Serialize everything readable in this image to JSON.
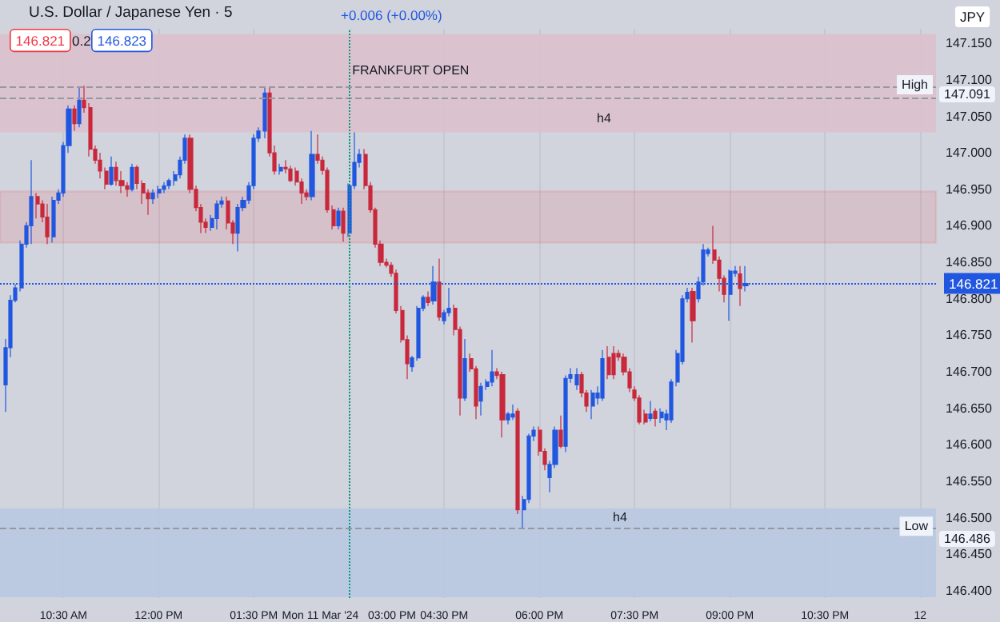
{
  "chart_data": {
    "type": "candlestick",
    "title": "U.S. Dollar / Japanese Yen · 5",
    "annotations": [
      "146.821",
      "0.2",
      "146.823",
      "+0.006 (+0.00%)",
      "JPY",
      "147.091",
      "146.486"
    ],
    "colors": [
      "#2157e0",
      "#2157e0",
      "#2157e0",
      "#2157e0",
      "#2157e0",
      "#2157e0",
      "#c8283c",
      "#c8283c",
      "#c8283c",
      "#2157e0",
      "#2157e0",
      "#2157e0",
      "#2157e0",
      "#c8283c",
      "#2157e0",
      "#c8283c",
      "#c8283c",
      "#c8283c",
      "#c8283c",
      "#c8283c",
      "#2157e0",
      "#c8283c",
      "#c8283c",
      "#c8283c",
      "#2157e0",
      "#c8283c",
      "#c8283c",
      "#c8283c",
      "#2157e0",
      "#2157e0",
      "#2157e0",
      "#2157e0",
      "#2157e0",
      "#2157e0",
      "#2157e0",
      "#c8283c",
      "#c8283c",
      "#c8283c",
      "#c8283c",
      "#2157e0",
      "#2157e0",
      "#2157e0",
      "#c8283c",
      "#c8283c",
      "#2157e0",
      "#2157e0",
      "#2157e0",
      "#2157e0",
      "#2157e0",
      "#2157e0",
      "#c8283c",
      "#c8283c",
      "#2157e0",
      "#c8283c",
      "#c8283c",
      "#c8283c",
      "#c8283c",
      "#c8283c",
      "#2157e0",
      "#c8283c",
      "#c8283c",
      "#c8283c",
      "#c8283c",
      "#2157e0",
      "#c8283c",
      "#2157e0",
      "#2157e0",
      "#2157e0",
      "#c8283c",
      "#c8283c",
      "#c8283c",
      "#c8283c",
      "#c8283c",
      "#c8283c",
      "#c8283c",
      "#c8283c",
      "#c8283c",
      "#2157e0",
      "#2157e0",
      "#2157e0",
      "#c8283c",
      "#2157e0",
      "#c8283c",
      "#2157e0",
      "#2157e0",
      "#c8283c",
      "#c8283c",
      "#2157e0",
      "#c8283c",
      "#c8283c",
      "#2157e0",
      "#2157e0",
      "#2157e0",
      "#c8283c",
      "#c8283c",
      "#2157e0",
      "#2157e0",
      "#c8283c",
      "#2157e0",
      "#2157e0",
      "#2157e0",
      "#c8283c",
      "#c8283c",
      "#2157e0",
      "#2157e0",
      "#c8283c",
      "#2157e0",
      "#2157e0",
      "#2157e0",
      "#c8283c",
      "#c8283c",
      "#2157e0",
      "#2157e0",
      "#2157e0",
      "#c8283c",
      "#c8283c",
      "#c8283c",
      "#c8283c",
      "#c8283c",
      "#c8283c",
      "#c8283c",
      "#c8283c",
      "#2157e0",
      "#c8283c",
      "#2157e0",
      "#2157e0",
      "#2157e0",
      "#2157e0",
      "#2157e0",
      "#2157e0",
      "#c8283c",
      "#2157e0",
      "#2157e0",
      "#2157e0",
      "#c8283c",
      "#c8283c",
      "#c8283c",
      "#2157e0",
      "#2157e0",
      "#c8283c",
      "#2157e0"
    ],
    "x": [
      "2024-03-11T09:35",
      "2024-03-11T09:40",
      "2024-03-11T09:45",
      "2024-03-11T09:50",
      "2024-03-11T09:55",
      "2024-03-11T10:00",
      "2024-03-11T10:05",
      "2024-03-11T10:10",
      "2024-03-11T10:15",
      "2024-03-11T10:20",
      "2024-03-11T10:25",
      "2024-03-11T10:30",
      "2024-03-11T10:35",
      "2024-03-11T10:40",
      "2024-03-11T10:45",
      "2024-03-11T10:50",
      "2024-03-11T10:55",
      "2024-03-11T11:00",
      "2024-03-11T11:05",
      "2024-03-11T11:10",
      "2024-03-11T11:15",
      "2024-03-11T11:20",
      "2024-03-11T11:25",
      "2024-03-11T11:30",
      "2024-03-11T11:35",
      "2024-03-11T11:40",
      "2024-03-11T11:45",
      "2024-03-11T11:50",
      "2024-03-11T11:55",
      "2024-03-11T12:00",
      "2024-03-11T12:05",
      "2024-03-11T12:10",
      "2024-03-11T12:15",
      "2024-03-11T12:20",
      "2024-03-11T12:25",
      "2024-03-11T12:30",
      "2024-03-11T12:35",
      "2024-03-11T12:40",
      "2024-03-11T12:45",
      "2024-03-11T12:50",
      "2024-03-11T12:55",
      "2024-03-11T13:00",
      "2024-03-11T13:05",
      "2024-03-11T13:10",
      "2024-03-11T13:15",
      "2024-03-11T13:20",
      "2024-03-11T13:25",
      "2024-03-11T13:30",
      "2024-03-11T13:35",
      "2024-03-11T13:40",
      "2024-03-11T13:45",
      "2024-03-11T13:50",
      "2024-03-11T13:55",
      "2024-03-11T14:00",
      "2024-03-11T14:05",
      "2024-03-11T14:10",
      "2024-03-11T14:15",
      "2024-03-11T14:20",
      "2024-03-11T14:25",
      "2024-03-11T14:30",
      "2024-03-11T14:35",
      "2024-03-11T14:40",
      "2024-03-11T14:45",
      "2024-03-11T14:50",
      "2024-03-11T14:55",
      "2024-03-11T15:00",
      "2024-03-11T15:05",
      "2024-03-11T15:10",
      "2024-03-11T15:15",
      "2024-03-11T15:20",
      "2024-03-11T15:25",
      "2024-03-11T15:30",
      "2024-03-11T15:35",
      "2024-03-11T15:40",
      "2024-03-11T15:45",
      "2024-03-11T15:50",
      "2024-03-11T15:55",
      "2024-03-11T16:00",
      "2024-03-11T16:05",
      "2024-03-11T16:10",
      "2024-03-11T16:15",
      "2024-03-11T16:20",
      "2024-03-11T16:25",
      "2024-03-11T16:30",
      "2024-03-11T16:35",
      "2024-03-11T16:40",
      "2024-03-11T16:45",
      "2024-03-11T16:50",
      "2024-03-11T16:55",
      "2024-03-11T17:00",
      "2024-03-11T17:05",
      "2024-03-11T17:10",
      "2024-03-11T17:15",
      "2024-03-11T17:20",
      "2024-03-11T17:25",
      "2024-03-11T17:30",
      "2024-03-11T17:35",
      "2024-03-11T17:40",
      "2024-03-11T17:45",
      "2024-03-11T17:50",
      "2024-03-11T17:55",
      "2024-03-11T18:00",
      "2024-03-11T18:05",
      "2024-03-11T18:10",
      "2024-03-11T18:15",
      "2024-03-11T18:20",
      "2024-03-11T18:25",
      "2024-03-11T18:30",
      "2024-03-11T18:35",
      "2024-03-11T18:40",
      "2024-03-11T18:45",
      "2024-03-11T18:50",
      "2024-03-11T18:55",
      "2024-03-11T19:00",
      "2024-03-11T19:05",
      "2024-03-11T19:10",
      "2024-03-11T19:15",
      "2024-03-11T19:20",
      "2024-03-11T19:25",
      "2024-03-11T19:30",
      "2024-03-11T19:35",
      "2024-03-11T19:40",
      "2024-03-11T19:45",
      "2024-03-11T19:50",
      "2024-03-11T19:55",
      "2024-03-11T20:00",
      "2024-03-11T20:05",
      "2024-03-11T20:10",
      "2024-03-11T20:15",
      "2024-03-11T20:20",
      "2024-03-11T20:25",
      "2024-03-11T20:30",
      "2024-03-11T20:35",
      "2024-03-11T20:40",
      "2024-03-11T20:45",
      "2024-03-11T20:50",
      "2024-03-11T20:55",
      "2024-03-11T21:00",
      "2024-03-11T21:05",
      "2024-03-11T21:10",
      "2024-03-11T21:15"
    ],
    "ohlc": [
      [
        146.682,
        146.745,
        146.645,
        146.733
      ],
      [
        146.733,
        146.805,
        146.72,
        146.798
      ],
      [
        146.798,
        146.82,
        146.795,
        146.815
      ],
      [
        146.815,
        146.88,
        146.81,
        146.875
      ],
      [
        146.875,
        146.905,
        146.87,
        146.9
      ],
      [
        146.9,
        146.99,
        146.875,
        146.94
      ],
      [
        146.94,
        146.945,
        146.91,
        146.93
      ],
      [
        146.93,
        146.935,
        146.905,
        146.912
      ],
      [
        146.912,
        146.93,
        146.875,
        146.885
      ],
      [
        146.885,
        146.94,
        146.877,
        146.935
      ],
      [
        146.935,
        146.95,
        146.93,
        146.945
      ],
      [
        146.945,
        147.015,
        146.94,
        147.01
      ],
      [
        147.01,
        147.065,
        147.0,
        147.06
      ],
      [
        147.06,
        147.065,
        147.03,
        147.04
      ],
      [
        147.04,
        147.09,
        147.035,
        147.072
      ],
      [
        147.072,
        147.092,
        147.055,
        147.062
      ],
      [
        147.062,
        147.068,
        146.995,
        147.005
      ],
      [
        147.005,
        147.01,
        146.985,
        146.99
      ],
      [
        146.99,
        147.0,
        146.965,
        146.975
      ],
      [
        146.975,
        146.98,
        146.95,
        146.957
      ],
      [
        146.957,
        146.995,
        146.955,
        146.98
      ],
      [
        146.98,
        146.988,
        146.955,
        146.962
      ],
      [
        146.962,
        146.975,
        146.945,
        146.955
      ],
      [
        146.955,
        146.96,
        146.94,
        146.95
      ],
      [
        146.95,
        146.985,
        146.947,
        146.98
      ],
      [
        146.98,
        146.983,
        146.95,
        146.958
      ],
      [
        146.958,
        146.962,
        146.93,
        146.945
      ],
      [
        146.945,
        146.95,
        146.915,
        146.937
      ],
      [
        146.937,
        146.95,
        146.93,
        146.945
      ],
      [
        146.945,
        146.955,
        146.938,
        146.95
      ],
      [
        146.95,
        146.96,
        146.945,
        146.955
      ],
      [
        146.955,
        146.965,
        146.95,
        146.962
      ],
      [
        146.962,
        146.975,
        146.955,
        146.97
      ],
      [
        146.97,
        146.995,
        146.965,
        146.99
      ],
      [
        146.99,
        147.025,
        146.985,
        147.02
      ],
      [
        147.02,
        147.025,
        146.945,
        146.95
      ],
      [
        146.95,
        146.955,
        146.92,
        146.925
      ],
      [
        146.925,
        146.93,
        146.89,
        146.905
      ],
      [
        146.905,
        146.91,
        146.89,
        146.898
      ],
      [
        146.898,
        146.915,
        146.893,
        146.91
      ],
      [
        146.91,
        146.935,
        146.895,
        146.93
      ],
      [
        146.93,
        146.94,
        146.925,
        146.934
      ],
      [
        146.934,
        146.94,
        146.895,
        146.904
      ],
      [
        146.904,
        146.908,
        146.875,
        146.89
      ],
      [
        146.89,
        146.93,
        146.865,
        146.925
      ],
      [
        146.925,
        146.94,
        146.92,
        146.935
      ],
      [
        146.935,
        146.96,
        146.93,
        146.955
      ],
      [
        146.955,
        147.025,
        146.95,
        147.02
      ],
      [
        147.02,
        147.035,
        147.015,
        147.03
      ],
      [
        147.03,
        147.09,
        147.02,
        147.082
      ],
      [
        147.082,
        147.09,
        146.995,
        147.0
      ],
      [
        147.0,
        147.01,
        146.97,
        146.975
      ],
      [
        146.975,
        146.985,
        146.97,
        146.98
      ],
      [
        146.98,
        146.99,
        146.972,
        146.978
      ],
      [
        146.978,
        146.982,
        146.96,
        146.962
      ],
      [
        146.975,
        146.98,
        146.955,
        146.96
      ],
      [
        146.96,
        146.965,
        146.93,
        146.945
      ],
      [
        146.945,
        146.95,
        146.935,
        146.94
      ],
      [
        146.94,
        147.03,
        146.935,
        146.998
      ],
      [
        146.998,
        147.025,
        146.985,
        146.99
      ],
      [
        146.99,
        146.995,
        146.97,
        146.976
      ],
      [
        146.976,
        146.98,
        146.918,
        146.922
      ],
      [
        146.922,
        146.928,
        146.895,
        146.9
      ],
      [
        146.9,
        146.925,
        146.895,
        146.92
      ],
      [
        146.92,
        146.925,
        146.878,
        146.89
      ],
      [
        146.89,
        146.958,
        146.885,
        146.955
      ],
      [
        146.955,
        147.028,
        146.95,
        146.987
      ],
      [
        146.987,
        147.005,
        146.98,
        146.998
      ],
      [
        146.998,
        147.005,
        146.95,
        146.955
      ],
      [
        146.955,
        146.96,
        146.918,
        146.922
      ],
      [
        146.922,
        146.925,
        146.87,
        146.875
      ],
      [
        146.875,
        146.88,
        146.845,
        146.85
      ],
      [
        146.85,
        146.855,
        146.843,
        146.846
      ],
      [
        146.846,
        146.85,
        146.83,
        146.835
      ],
      [
        146.835,
        146.84,
        146.78,
        146.784
      ],
      [
        146.784,
        146.79,
        146.74,
        146.744
      ],
      [
        146.744,
        146.75,
        146.69,
        146.711
      ],
      [
        146.707,
        146.722,
        146.7,
        146.719
      ],
      [
        146.719,
        146.79,
        146.715,
        146.787
      ],
      [
        146.787,
        146.805,
        146.783,
        146.802
      ],
      [
        146.802,
        146.81,
        146.79,
        146.795
      ],
      [
        146.797,
        146.845,
        146.792,
        146.823
      ],
      [
        146.823,
        146.855,
        146.77,
        146.775
      ],
      [
        146.77,
        146.785,
        146.765,
        146.781
      ],
      [
        146.781,
        146.815,
        146.776,
        146.787
      ],
      [
        146.787,
        146.792,
        146.75,
        146.758
      ],
      [
        146.758,
        146.762,
        146.64,
        146.664
      ],
      [
        146.664,
        146.745,
        146.66,
        146.718
      ],
      [
        146.718,
        146.725,
        146.7,
        146.704
      ],
      [
        146.704,
        146.708,
        146.635,
        146.653
      ],
      [
        146.66,
        146.685,
        146.64,
        146.68
      ],
      [
        146.68,
        146.69,
        146.675,
        146.686
      ],
      [
        146.686,
        146.73,
        146.68,
        146.7
      ],
      [
        146.7,
        146.705,
        146.69,
        146.695
      ],
      [
        146.696,
        146.7,
        146.61,
        146.634
      ],
      [
        146.634,
        146.645,
        146.628,
        146.642
      ],
      [
        146.638,
        146.655,
        146.634,
        146.642
      ],
      [
        146.646,
        146.65,
        146.505,
        146.511
      ],
      [
        146.511,
        146.53,
        146.486,
        146.525
      ],
      [
        146.525,
        146.615,
        146.52,
        146.612
      ],
      [
        146.612,
        146.625,
        146.605,
        146.62
      ],
      [
        146.62,
        146.625,
        146.585,
        146.591
      ],
      [
        146.591,
        146.595,
        146.565,
        146.573
      ],
      [
        146.555,
        146.578,
        146.535,
        146.573
      ],
      [
        146.573,
        146.625,
        146.568,
        146.62
      ],
      [
        146.62,
        146.64,
        146.595,
        146.598
      ],
      [
        146.598,
        146.695,
        146.59,
        146.691
      ],
      [
        146.691,
        146.705,
        146.685,
        146.696
      ],
      [
        146.682,
        146.705,
        146.675,
        146.696
      ],
      [
        146.696,
        146.7,
        146.665,
        146.671
      ],
      [
        146.671,
        146.675,
        146.645,
        146.653
      ],
      [
        146.653,
        146.675,
        146.635,
        146.671
      ],
      [
        146.664,
        146.68,
        146.655,
        146.671
      ],
      [
        146.664,
        146.73,
        146.66,
        146.718
      ],
      [
        146.72,
        146.735,
        146.69,
        146.696
      ],
      [
        146.725,
        146.735,
        146.69,
        146.696
      ],
      [
        146.725,
        146.73,
        146.715,
        146.72
      ],
      [
        146.72,
        146.725,
        146.695,
        146.7
      ],
      [
        146.7,
        146.705,
        146.672,
        146.678
      ],
      [
        146.675,
        146.68,
        146.66,
        146.664
      ],
      [
        146.664,
        146.668,
        146.628,
        146.631
      ],
      [
        146.642,
        146.648,
        146.628,
        146.631
      ],
      [
        146.636,
        146.66,
        146.632,
        146.642
      ],
      [
        146.646,
        146.65,
        146.625,
        146.636
      ],
      [
        146.637,
        146.65,
        146.63,
        146.645
      ],
      [
        146.634,
        146.648,
        146.62,
        146.642
      ],
      [
        146.634,
        146.69,
        146.63,
        146.686
      ],
      [
        146.686,
        146.73,
        146.68,
        146.725
      ],
      [
        146.714,
        146.805,
        146.71,
        146.8
      ],
      [
        146.8,
        146.815,
        146.795,
        146.809
      ],
      [
        146.81,
        146.815,
        146.74,
        146.77
      ],
      [
        146.8,
        146.83,
        146.795,
        146.823
      ],
      [
        146.823,
        146.875,
        146.818,
        146.867
      ],
      [
        146.862,
        146.87,
        146.858,
        146.867
      ],
      [
        146.867,
        146.9,
        146.848,
        146.853
      ],
      [
        146.853,
        146.858,
        146.81,
        146.828
      ],
      [
        146.828,
        146.832,
        146.795,
        146.806
      ],
      [
        146.806,
        146.84,
        146.77,
        146.838
      ],
      [
        146.835,
        146.845,
        146.83,
        146.838
      ],
      [
        146.834,
        146.845,
        146.79,
        146.814
      ],
      [
        146.818,
        146.845,
        146.81,
        146.821
      ]
    ],
    "xlim": [
      "2024-03-11T09:30",
      "2024-03-12T00:15"
    ],
    "xticks": [
      {
        "value": "2024-03-11T10:30",
        "label": "10:30 AM"
      },
      {
        "value": "2024-03-11T12:00",
        "label": "12:00 PM"
      },
      {
        "value": "2024-03-11T13:30",
        "label": "01:30 PM"
      },
      {
        "value": "2024-03-11T15:00",
        "label": "Mon 11 Mar '24   03:00 PM"
      },
      {
        "value": "2024-03-11T16:30",
        "label": "04:30 PM"
      },
      {
        "value": "2024-03-11T18:00",
        "label": "06:00 PM"
      },
      {
        "value": "2024-03-11T19:30",
        "label": "07:30 PM"
      },
      {
        "value": "2024-03-11T21:00",
        "label": "09:00 PM"
      },
      {
        "value": "2024-03-11T22:30",
        "label": "10:30 PM"
      },
      {
        "value": "2024-03-12T00:00",
        "label": "12"
      }
    ],
    "ylim": [
      146.39,
      147.17
    ],
    "yticks": [
      {
        "value": 146.4,
        "label": "146.400"
      },
      {
        "value": 146.45,
        "label": "146.450"
      },
      {
        "value": 146.5,
        "label": "146.500"
      },
      {
        "value": 146.55,
        "label": "146.550"
      },
      {
        "value": 146.6,
        "label": "146.600"
      },
      {
        "value": 146.65,
        "label": "146.650"
      },
      {
        "value": 146.7,
        "label": "146.700"
      },
      {
        "value": 146.75,
        "label": "146.750"
      },
      {
        "value": 146.8,
        "label": "146.800"
      },
      {
        "value": 146.85,
        "label": "146.850"
      },
      {
        "value": 146.9,
        "label": "146.900"
      },
      {
        "value": 146.95,
        "label": "146.950"
      },
      {
        "value": 147.0,
        "label": "147.000"
      },
      {
        "value": 147.05,
        "label": "147.050"
      },
      {
        "value": 147.1,
        "label": "147.100"
      },
      {
        "value": 147.15,
        "label": "147.150"
      }
    ],
    "grid": "x",
    "bands": [
      {
        "axis": "y",
        "from": 147.028,
        "to": 147.163,
        "label": "h4",
        "color": "#dcbfcd"
      },
      {
        "axis": "y",
        "from": 146.391,
        "to": 146.513,
        "label": "h4",
        "color": "#b9c8e2"
      },
      {
        "axis": "y",
        "from": 146.877,
        "to": 146.947,
        "color": "#f23645"
      }
    ],
    "ref_lines": [
      {
        "axis": "y",
        "value": 147.091,
        "label": "High",
        "line_style": "dashed",
        "color": "#9598a1"
      },
      {
        "axis": "y",
        "value": 147.076,
        "line_style": "dashed",
        "color": "#9598a1"
      },
      {
        "axis": "y",
        "value": 146.486,
        "label": "Low",
        "line_style": "dashed",
        "color": "#9598a1"
      },
      {
        "axis": "y",
        "value": 146.821,
        "label": "146.821",
        "line_style": "dotted",
        "color": "#2157e0"
      },
      {
        "axis": "x",
        "value": "2024-03-11T15:00",
        "label": "FRANKFURT OPEN",
        "line_style": "dotted",
        "color": "#089981"
      }
    ]
  }
}
